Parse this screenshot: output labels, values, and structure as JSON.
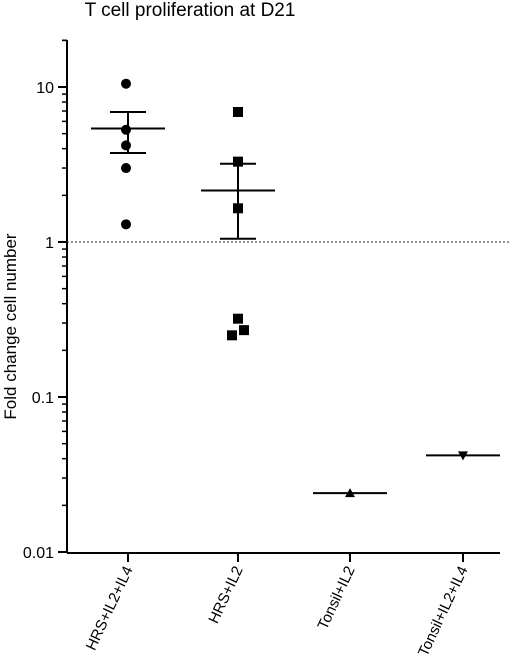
{
  "chart_data": {
    "type": "scatter",
    "title": "T cell proliferation at D21",
    "xlabel": "",
    "ylabel": "Fold change cell number",
    "yscale": "log",
    "ylim": [
      0.01,
      20
    ],
    "yticks": [
      {
        "value": 10,
        "label": "10"
      },
      {
        "value": 1,
        "label": "1"
      },
      {
        "value": 0.1,
        "label": "0.1"
      },
      {
        "value": 0.01,
        "label": "0.01"
      }
    ],
    "reference_line": {
      "value": 1,
      "style": "dotted"
    },
    "categories": [
      "HRS+IL2+IL4",
      "HRS+IL2",
      "Tonsil+IL2",
      "Tonsil+IL2+IL4"
    ],
    "series": [
      {
        "category": "HRS+IL2+IL4",
        "marker": "circle",
        "points": [
          10.5,
          5.3,
          4.2,
          3.0,
          1.3
        ],
        "mean": 5.4,
        "sem_low": 3.75,
        "sem_high": 6.9
      },
      {
        "category": "HRS+IL2",
        "marker": "square",
        "points": [
          6.9,
          3.3,
          1.65,
          0.32,
          0.27,
          0.25
        ],
        "mean": 2.15,
        "sem_low": 1.05,
        "sem_high": 3.2
      },
      {
        "category": "Tonsil+IL2",
        "marker": "triangle-up",
        "points": [
          0.024
        ],
        "mean": 0.024,
        "sem_low": null,
        "sem_high": null
      },
      {
        "category": "Tonsil+IL2+IL4",
        "marker": "triangle-down",
        "points": [
          0.042
        ],
        "mean": 0.042,
        "sem_low": null,
        "sem_high": null
      }
    ]
  }
}
